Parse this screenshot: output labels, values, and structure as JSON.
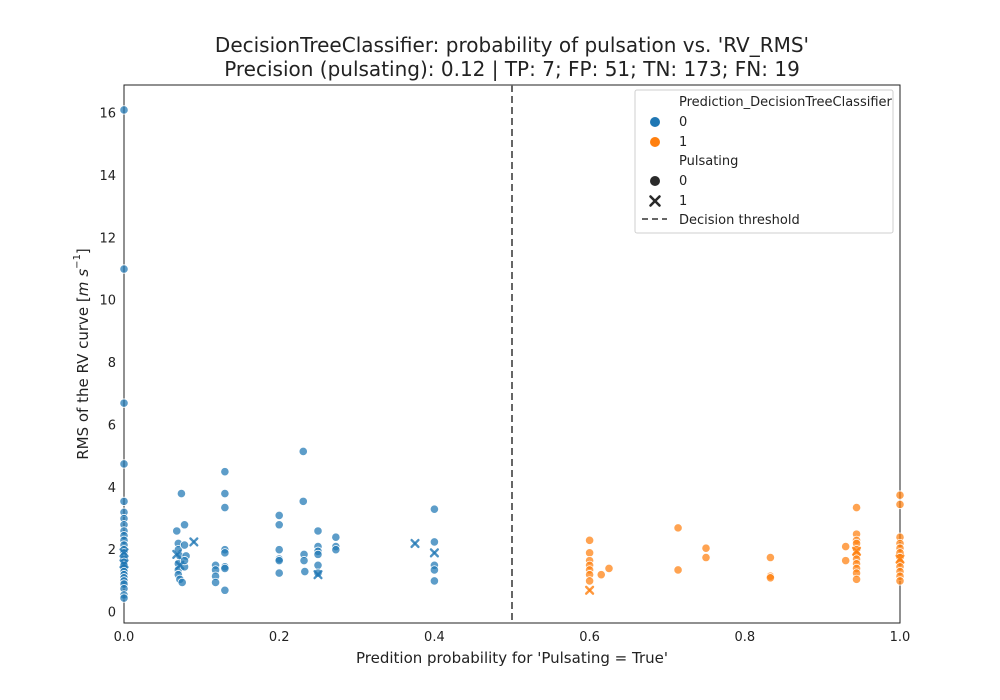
{
  "chart_data": {
    "type": "scatter",
    "title": "DecisionTreeClassifier: probability of pulsation vs. 'RV_RMS'",
    "subtitle": "Precision (pulsating): 0.12 | TP: 7; FP: 51; TN: 173; FN: 19",
    "xlabel": "Predition probability for 'Pulsating = True'",
    "ylabel": "RMS of the RV curve [m s⁻¹]",
    "ylabel_parts": {
      "prefix": "RMS of the RV curve [",
      "unit_m": "m",
      "unit_s": "s",
      "unit_exp": "−1",
      "suffix": "]"
    },
    "xlim": [
      0.0,
      1.0
    ],
    "ylim": [
      -0.35,
      16.9
    ],
    "xticks": [
      0.0,
      0.2,
      0.4,
      0.6,
      0.8,
      1.0
    ],
    "xtick_labels": [
      "0.0",
      "0.2",
      "0.4",
      "0.6",
      "0.8",
      "1.0"
    ],
    "yticks": [
      0,
      2,
      4,
      6,
      8,
      10,
      12,
      14,
      16
    ],
    "ytick_labels": [
      "0",
      "2",
      "4",
      "6",
      "8",
      "10",
      "12",
      "14",
      "16"
    ],
    "grid": false,
    "decision_threshold": 0.5,
    "legend": {
      "placement": "top-right",
      "hue_title": "Prediction_DecisionTreeClassifier",
      "hue_entries": [
        {
          "label": "0",
          "color": "#1f77b4"
        },
        {
          "label": "1",
          "color": "#ff7f0e"
        }
      ],
      "style_title": "Pulsating",
      "style_entries": [
        {
          "label": "0",
          "marker": "circle"
        },
        {
          "label": "1",
          "marker": "x"
        }
      ],
      "threshold_label": "Decision threshold"
    },
    "series": [
      {
        "name": "Prediction 0, Pulsating 0",
        "color": "#1f77b4",
        "marker": "circle",
        "points": [
          [
            0,
            16.1
          ],
          [
            0,
            11.0
          ],
          [
            0,
            6.7
          ],
          [
            0,
            4.75
          ],
          [
            0,
            3.55
          ],
          [
            0,
            3.2
          ],
          [
            0,
            3.0
          ],
          [
            0,
            2.8
          ],
          [
            0,
            2.6
          ],
          [
            0,
            2.45
          ],
          [
            0,
            2.3
          ],
          [
            0,
            2.15
          ],
          [
            0,
            2.0
          ],
          [
            0,
            1.9
          ],
          [
            0,
            1.8
          ],
          [
            0,
            1.7
          ],
          [
            0,
            1.6
          ],
          [
            0,
            1.5
          ],
          [
            0,
            1.4
          ],
          [
            0,
            1.3
          ],
          [
            0,
            1.2
          ],
          [
            0,
            1.1
          ],
          [
            0,
            1.0
          ],
          [
            0,
            0.9
          ],
          [
            0,
            0.75
          ],
          [
            0,
            0.55
          ],
          [
            0,
            0.45
          ],
          [
            0.068,
            2.6
          ],
          [
            0.07,
            2.2
          ],
          [
            0.07,
            2.0
          ],
          [
            0.072,
            1.8
          ],
          [
            0.07,
            1.55
          ],
          [
            0.07,
            1.35
          ],
          [
            0.07,
            1.2
          ],
          [
            0.072,
            1.05
          ],
          [
            0.075,
            0.95
          ],
          [
            0.074,
            3.8
          ],
          [
            0.078,
            2.8
          ],
          [
            0.078,
            2.15
          ],
          [
            0.08,
            1.8
          ],
          [
            0.078,
            1.45
          ],
          [
            0.078,
            1.65
          ],
          [
            0.118,
            1.5
          ],
          [
            0.118,
            1.35
          ],
          [
            0.118,
            1.15
          ],
          [
            0.118,
            0.95
          ],
          [
            0.13,
            4.5
          ],
          [
            0.13,
            3.8
          ],
          [
            0.13,
            3.35
          ],
          [
            0.13,
            2.0
          ],
          [
            0.13,
            1.9
          ],
          [
            0.13,
            1.45
          ],
          [
            0.13,
            1.4
          ],
          [
            0.13,
            0.7
          ],
          [
            0.2,
            3.1
          ],
          [
            0.2,
            2.8
          ],
          [
            0.2,
            2.0
          ],
          [
            0.2,
            1.7
          ],
          [
            0.2,
            1.65
          ],
          [
            0.2,
            1.25
          ],
          [
            0.231,
            5.15
          ],
          [
            0.231,
            3.55
          ],
          [
            0.232,
            1.85
          ],
          [
            0.232,
            1.65
          ],
          [
            0.233,
            1.3
          ],
          [
            0.25,
            2.6
          ],
          [
            0.25,
            2.1
          ],
          [
            0.25,
            1.95
          ],
          [
            0.25,
            1.85
          ],
          [
            0.25,
            1.5
          ],
          [
            0.25,
            1.25
          ],
          [
            0.273,
            2.4
          ],
          [
            0.273,
            2.1
          ],
          [
            0.273,
            2.0
          ],
          [
            0.4,
            3.3
          ],
          [
            0.4,
            2.25
          ],
          [
            0.4,
            1.5
          ],
          [
            0.4,
            1.35
          ],
          [
            0.4,
            1.0
          ]
        ]
      },
      {
        "name": "Prediction 0, Pulsating 1",
        "color": "#1f77b4",
        "marker": "x",
        "points": [
          [
            0,
            1.9
          ],
          [
            0,
            1.55
          ],
          [
            0.068,
            1.85
          ],
          [
            0.072,
            1.5
          ],
          [
            0.09,
            2.25
          ],
          [
            0.25,
            1.2
          ],
          [
            0.375,
            2.2
          ],
          [
            0.4,
            1.9
          ]
        ]
      },
      {
        "name": "Prediction 1, Pulsating 0",
        "color": "#ff7f0e",
        "marker": "circle",
        "points": [
          [
            0.6,
            2.3
          ],
          [
            0.6,
            1.9
          ],
          [
            0.6,
            1.65
          ],
          [
            0.6,
            1.5
          ],
          [
            0.6,
            1.35
          ],
          [
            0.6,
            1.2
          ],
          [
            0.6,
            1.0
          ],
          [
            0.615,
            1.2
          ],
          [
            0.625,
            1.4
          ],
          [
            0.714,
            2.7
          ],
          [
            0.714,
            1.35
          ],
          [
            0.75,
            2.05
          ],
          [
            0.75,
            1.75
          ],
          [
            0.833,
            1.75
          ],
          [
            0.833,
            1.15
          ],
          [
            0.833,
            1.1
          ],
          [
            0.93,
            2.1
          ],
          [
            0.93,
            1.65
          ],
          [
            0.944,
            3.35
          ],
          [
            0.944,
            2.5
          ],
          [
            0.944,
            2.3
          ],
          [
            0.944,
            2.2
          ],
          [
            0.944,
            2.0
          ],
          [
            0.944,
            1.85
          ],
          [
            0.944,
            1.7
          ],
          [
            0.944,
            1.55
          ],
          [
            0.944,
            1.4
          ],
          [
            0.944,
            1.25
          ],
          [
            0.944,
            1.05
          ],
          [
            1.0,
            3.75
          ],
          [
            1.0,
            3.45
          ],
          [
            1.0,
            2.4
          ],
          [
            1.0,
            2.2
          ],
          [
            1.0,
            2.05
          ],
          [
            1.0,
            1.9
          ],
          [
            1.0,
            1.75
          ],
          [
            1.0,
            1.6
          ],
          [
            1.0,
            1.45
          ],
          [
            1.0,
            1.3
          ],
          [
            1.0,
            1.15
          ],
          [
            1.0,
            1.0
          ]
        ]
      },
      {
        "name": "Prediction 1, Pulsating 1",
        "color": "#ff7f0e",
        "marker": "x",
        "points": [
          [
            0.6,
            0.7
          ],
          [
            0.944,
            1.95
          ],
          [
            1.0,
            1.7
          ]
        ]
      }
    ]
  }
}
